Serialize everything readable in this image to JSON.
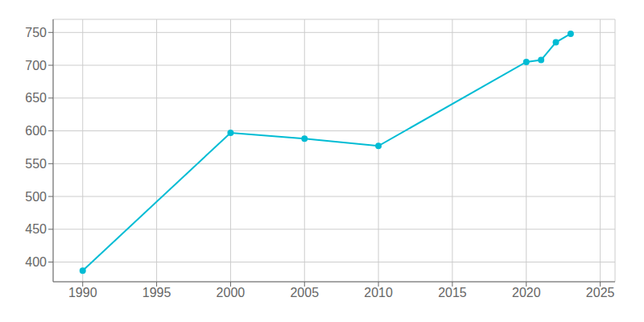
{
  "chart_data": {
    "type": "line",
    "x": [
      1990,
      2000,
      2005,
      2010,
      2020,
      2021,
      2022,
      2023
    ],
    "values": [
      387,
      597,
      588,
      577,
      705,
      708,
      735,
      748
    ],
    "color": "#00bcd4",
    "marker": "circle",
    "xlim": [
      1988,
      2026
    ],
    "ylim": [
      370,
      770
    ],
    "xticks": [
      1990,
      1995,
      2000,
      2005,
      2010,
      2015,
      2020,
      2025
    ],
    "yticks": [
      400,
      450,
      500,
      550,
      600,
      650,
      700,
      750
    ],
    "grid": true
  }
}
